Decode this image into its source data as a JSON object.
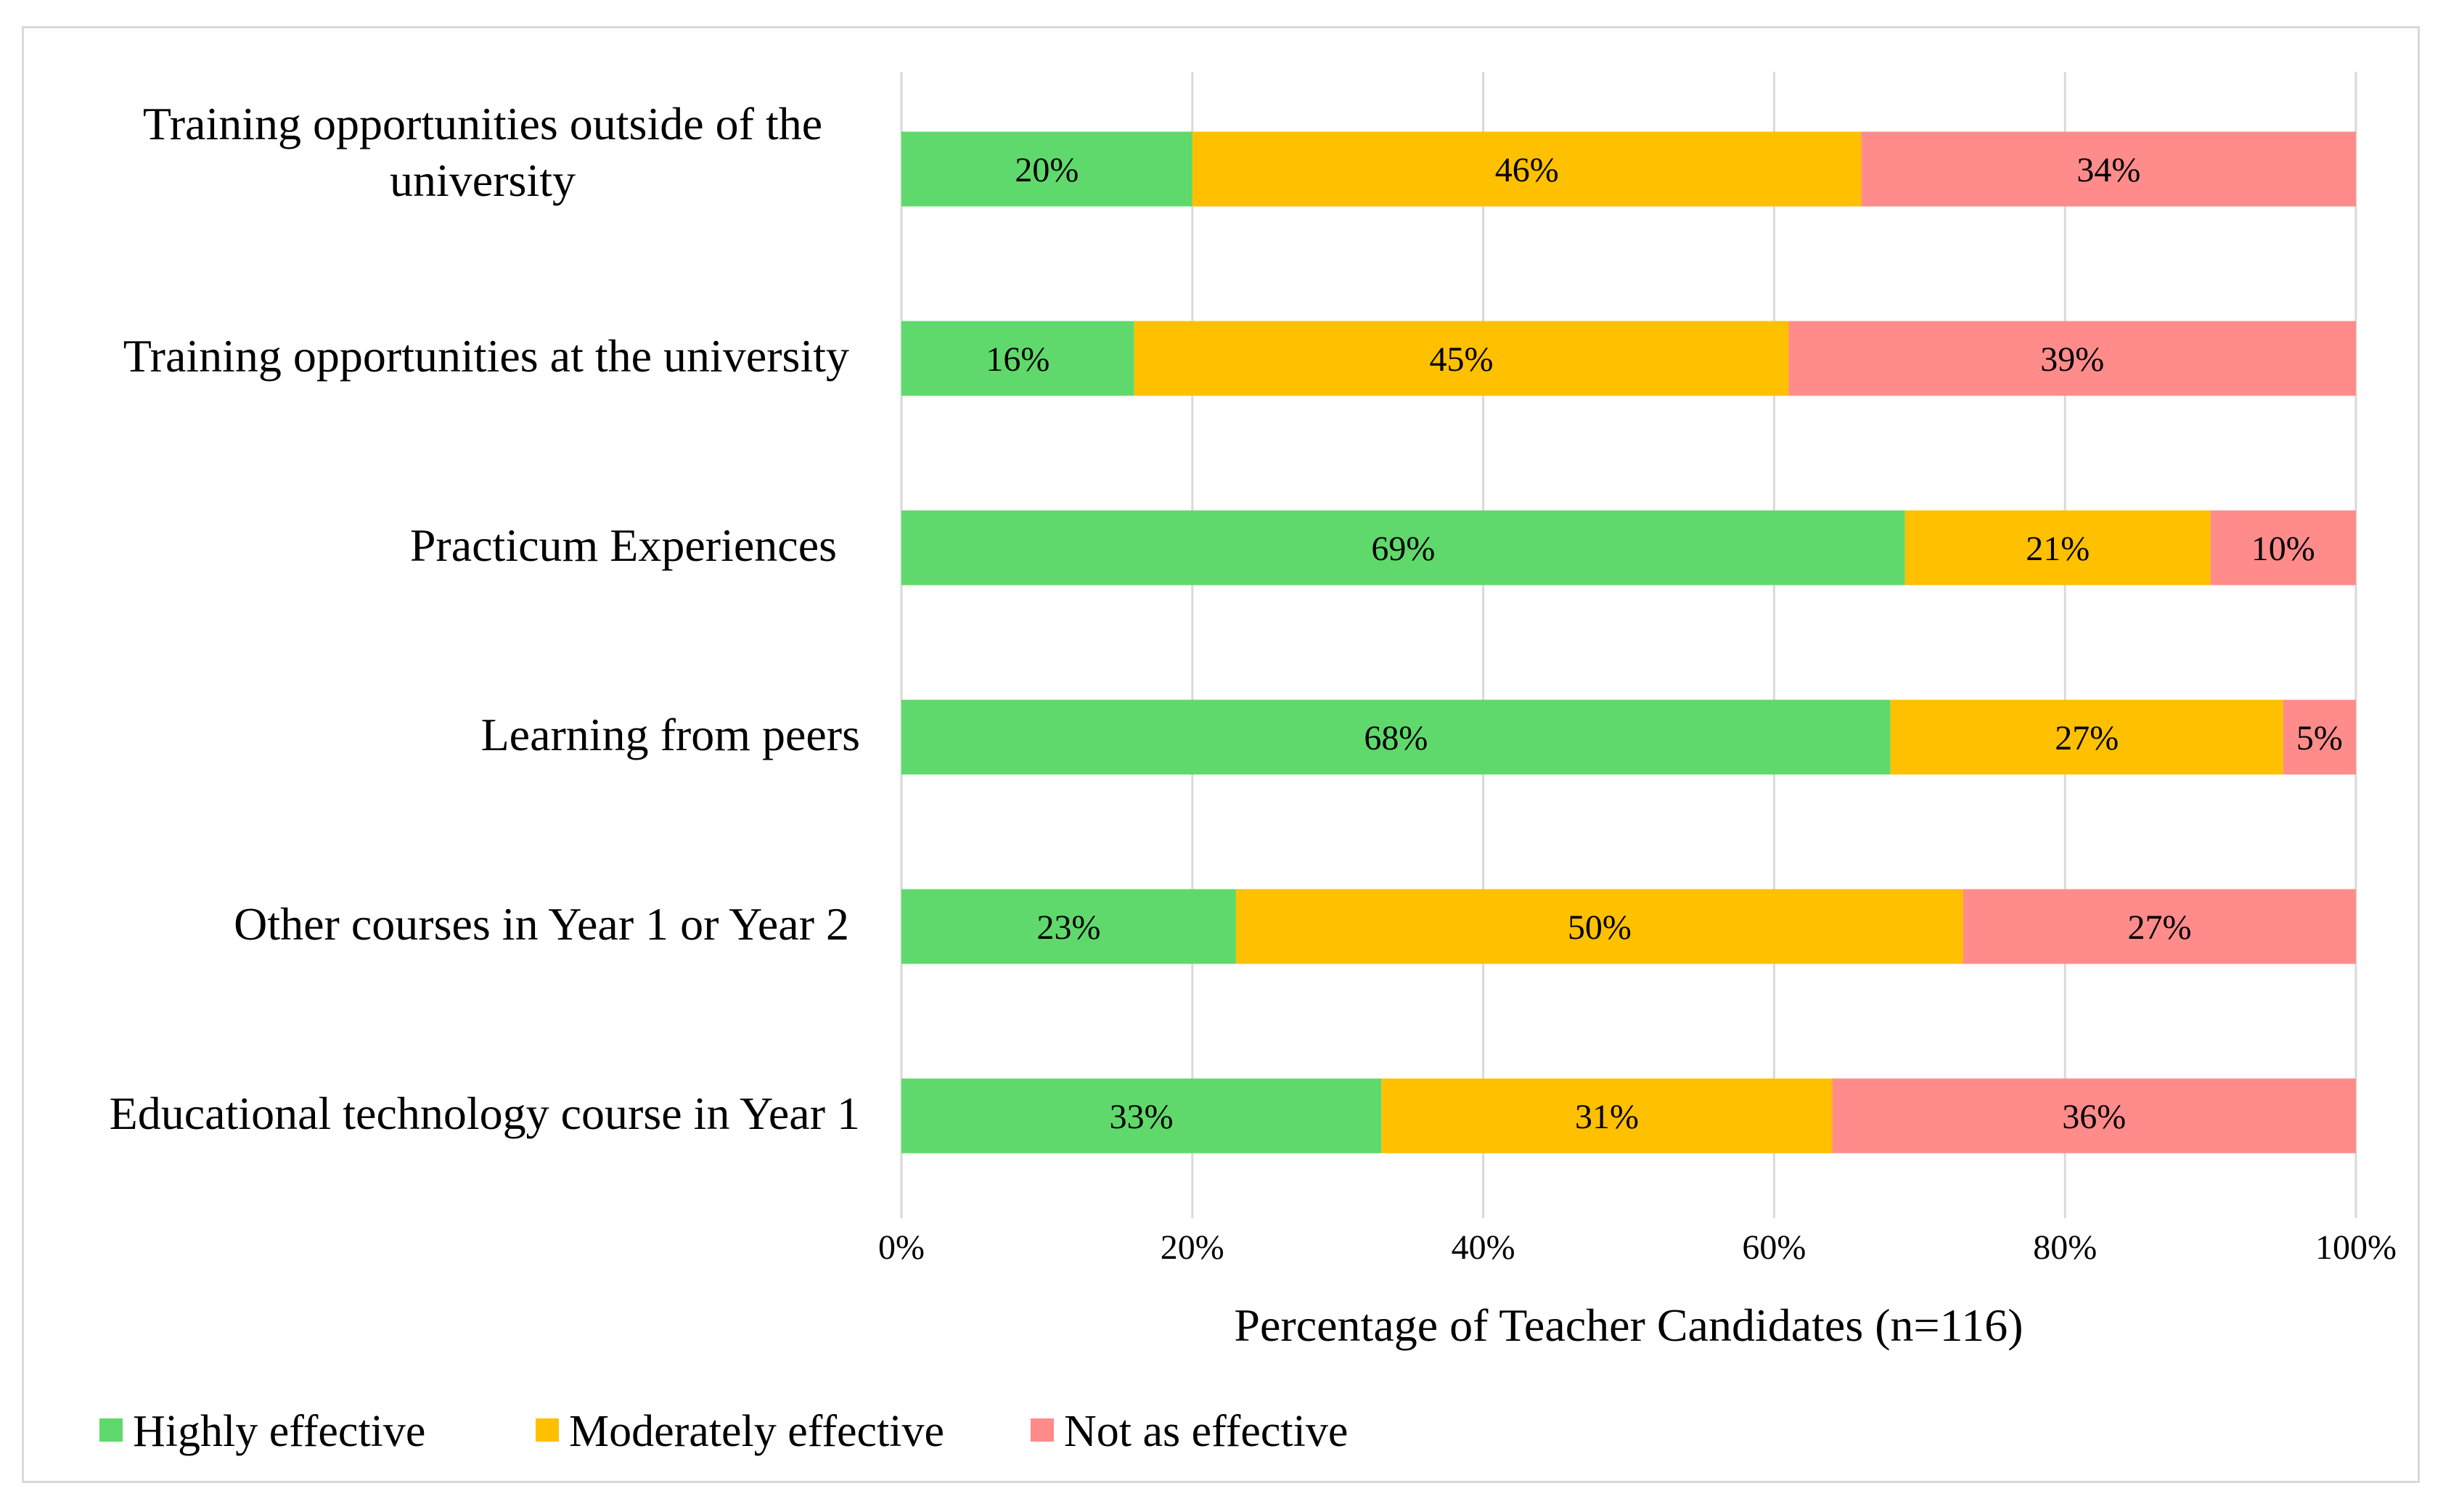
{
  "chart_data": {
    "type": "bar",
    "orientation": "horizontal",
    "stacked": true,
    "categories": [
      "Training opportunities outside of the university",
      "Training opportunities at the university",
      "Practicum Experiences",
      "Learning from peers",
      "Other courses in Year 1 or Year 2",
      "Educational technology course in Year 1"
    ],
    "category_label_lines": [
      [
        "Training opportunities outside of the",
        "university"
      ],
      [
        "Training opportunities at the university"
      ],
      [
        "Practicum Experiences"
      ],
      [
        "Learning from peers"
      ],
      [
        "Other courses in Year 1 or Year 2"
      ],
      [
        "Educational technology course in Year 1"
      ]
    ],
    "series": [
      {
        "name": "Highly effective",
        "color": "#5fd96b",
        "values": [
          20,
          16,
          69,
          68,
          23,
          33
        ],
        "labels": [
          "20%",
          "16%",
          "69%",
          "68%",
          "23%",
          "33%"
        ]
      },
      {
        "name": "Moderately effective",
        "color": "#ffc000",
        "values": [
          46,
          45,
          21,
          27,
          50,
          31
        ],
        "labels": [
          "46%",
          "45%",
          "21%",
          "27%",
          "50%",
          "31%"
        ]
      },
      {
        "name": "Not as effective",
        "color": "#ff8b8b",
        "values": [
          34,
          39,
          10,
          5,
          27,
          36
        ],
        "labels": [
          "34%",
          "39%",
          "10%",
          "5%",
          "27%",
          "36%"
        ]
      }
    ],
    "xlim": [
      0,
      100
    ],
    "xticks": [
      0,
      20,
      40,
      60,
      80,
      100
    ],
    "xtick_labels": [
      "0%",
      "20%",
      "40%",
      "60%",
      "80%",
      "100%"
    ],
    "xlabel": "Percentage of Teacher Candidates (n=116)",
    "ylabel": "",
    "title": "",
    "grid": true,
    "legend_position": "bottom-left"
  }
}
